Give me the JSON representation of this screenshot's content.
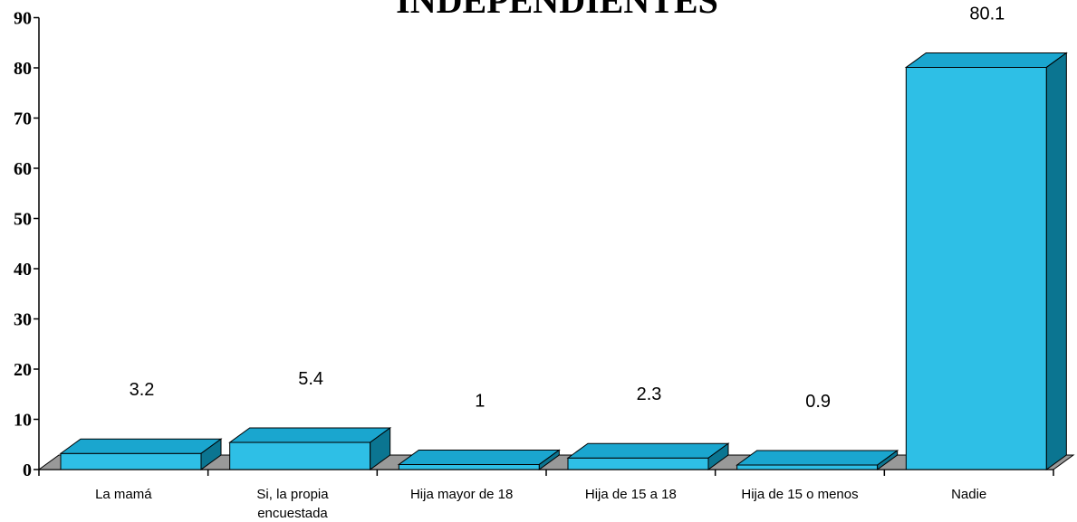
{
  "chart_data": {
    "type": "bar",
    "title": "INDEPENDIENTES",
    "categories": [
      [
        "La mamá"
      ],
      [
        "Si, la propia",
        "encuestada"
      ],
      [
        "Hija mayor de 18"
      ],
      [
        "Hija de 15 a 18"
      ],
      [
        "Hija de 15 o menos"
      ],
      [
        "Nadie"
      ]
    ],
    "values": [
      3.2,
      5.4,
      1,
      2.3,
      0.9,
      80.1
    ],
    "data_labels": [
      "3.2",
      "5.4",
      "1",
      "2.3",
      "0.9",
      "80.1"
    ],
    "ylim": [
      0,
      90
    ],
    "yticks": [
      0,
      10,
      20,
      30,
      40,
      50,
      60,
      70,
      80,
      90
    ],
    "grid": false,
    "legend": "none",
    "style": "3d-column"
  },
  "colors": {
    "bar_front": "#2ebfe6",
    "bar_top": "#1aa6cf",
    "bar_side": "#0b7591",
    "floor": "#999999",
    "axis": "#000000"
  }
}
